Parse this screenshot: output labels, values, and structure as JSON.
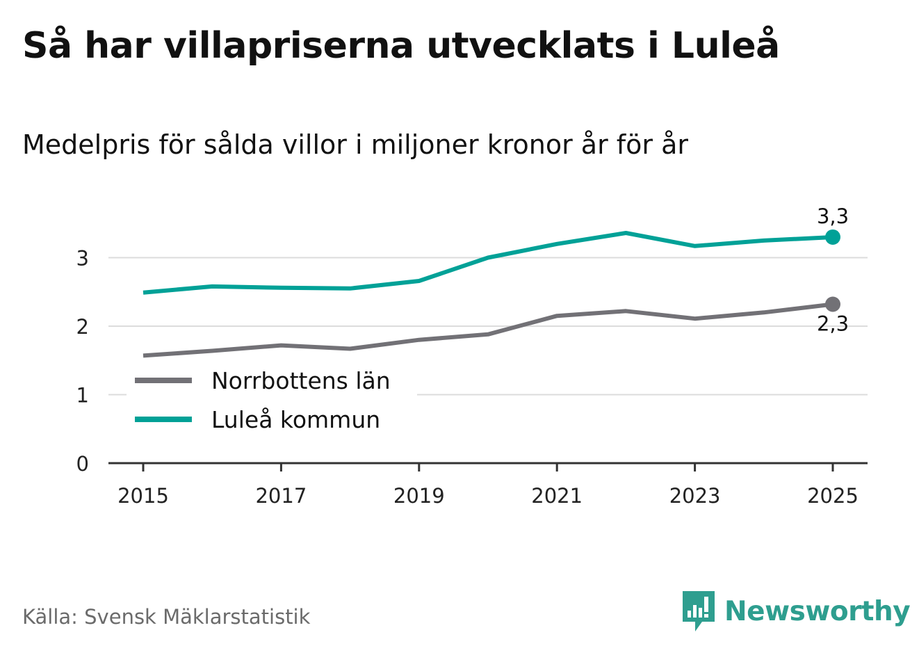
{
  "title": "Så har villapriserna utvecklats i Luleå",
  "subtitle": "Medelpris för sålda villor i miljoner kronor år för år",
  "source": "Källa: Svensk Mäklarstatistik",
  "brand": {
    "name": "Newsworthy",
    "icon": "newsworthy-logo-icon",
    "color": "#2e9e8f"
  },
  "chart_data": {
    "type": "line",
    "x": [
      2015,
      2016,
      2017,
      2018,
      2019,
      2020,
      2021,
      2022,
      2023,
      2024,
      2025
    ],
    "x_ticks": [
      {
        "value": 2015,
        "label": "2015"
      },
      {
        "value": 2017,
        "label": "2017"
      },
      {
        "value": 2019,
        "label": "2019"
      },
      {
        "value": 2021,
        "label": "2021"
      },
      {
        "value": 2023,
        "label": "2023"
      },
      {
        "value": 2025,
        "label": "2025"
      }
    ],
    "y_ticks": [
      {
        "value": 0,
        "label": "0"
      },
      {
        "value": 1,
        "label": "1"
      },
      {
        "value": 2,
        "label": "2"
      },
      {
        "value": 3,
        "label": "3"
      }
    ],
    "ylim": [
      0,
      3.5
    ],
    "xlim": [
      2015,
      2025
    ],
    "grid": true,
    "legend_position": "bottom-left",
    "series": [
      {
        "name": "Norrbottens län",
        "color": "#727176",
        "values": [
          1.57,
          1.64,
          1.72,
          1.67,
          1.8,
          1.88,
          2.15,
          2.22,
          2.11,
          2.2,
          2.32
        ],
        "end_label": "2,3",
        "end_label_position": "below"
      },
      {
        "name": "Luleå kommun",
        "color": "#00a197",
        "values": [
          2.49,
          2.58,
          2.56,
          2.55,
          2.66,
          3.0,
          3.2,
          3.36,
          3.17,
          3.25,
          3.3
        ],
        "end_label": "3,3",
        "end_label_position": "above"
      }
    ]
  }
}
